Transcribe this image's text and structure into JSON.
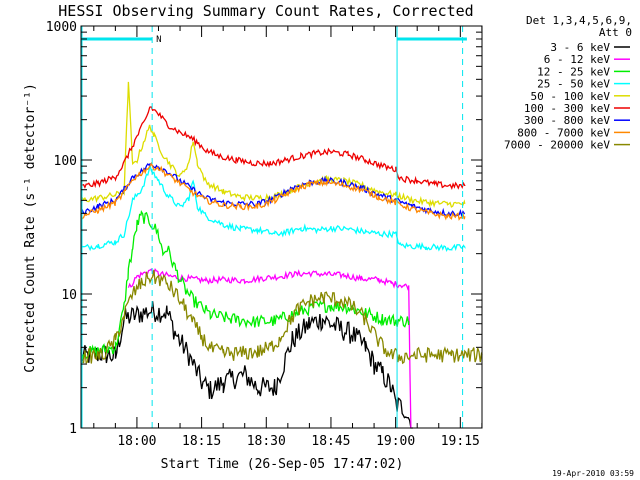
{
  "chart_data": {
    "type": "line",
    "title": "HESSI Observing Summary Count Rates, Corrected",
    "xlabel": "Start Time (26-Sep-05 17:47:02)",
    "ylabel": "Corrected Count Rate (s⁻¹ detector⁻¹)",
    "x_units": "minutes since 17:47:02",
    "xlim": [
      0,
      93
    ],
    "ylim": [
      1,
      1000
    ],
    "yscale": "log",
    "x_ticks": [
      {
        "value": 12.97,
        "label": "18:00"
      },
      {
        "value": 27.97,
        "label": "18:15"
      },
      {
        "value": 42.97,
        "label": "18:30"
      },
      {
        "value": 57.97,
        "label": "18:45"
      },
      {
        "value": 72.97,
        "label": "19:00"
      },
      {
        "value": 87.97,
        "label": "19:15"
      }
    ],
    "y_ticks": [
      {
        "value": 1,
        "label": "1"
      },
      {
        "value": 10,
        "label": "10"
      },
      {
        "value": 100,
        "label": "100"
      },
      {
        "value": 1000,
        "label": "1000"
      }
    ],
    "legend": {
      "header": [
        "Det 1,3,4,5,6,9,",
        "Att 0"
      ],
      "placement": "right"
    },
    "night_markers": [
      {
        "x": 16.5,
        "label": "N"
      },
      {
        "x": 88.5,
        "label": ""
      }
    ],
    "saa_bars": [
      {
        "x_start": 0,
        "x_end": 16.5,
        "y": 800
      },
      {
        "x_start": 73.3,
        "x_end": 89.5,
        "y": 800
      }
    ],
    "data_gaps": [
      {
        "x": 0
      },
      {
        "x": 73.3
      }
    ],
    "series": [
      {
        "name": "3 - 6 keV",
        "color": "#000000",
        "points": [
          [
            0,
            3.4
          ],
          [
            5,
            3.6
          ],
          [
            8,
            3.4
          ],
          [
            10,
            6.5
          ],
          [
            13,
            7.0
          ],
          [
            16,
            7.5
          ],
          [
            20,
            7.3
          ],
          [
            22,
            5.0
          ],
          [
            25,
            3.5
          ],
          [
            28,
            2.2
          ],
          [
            30,
            1.9
          ],
          [
            33,
            2.2
          ],
          [
            38,
            2.5
          ],
          [
            41,
            2.0
          ],
          [
            45,
            2.0
          ],
          [
            49,
            4.5
          ],
          [
            53,
            6.0
          ],
          [
            56,
            6.5
          ],
          [
            60,
            5.5
          ],
          [
            63,
            5.0
          ],
          [
            66,
            4.0
          ],
          [
            68,
            3.0
          ],
          [
            70,
            2.5
          ],
          [
            72,
            2.0
          ],
          [
            73,
            1.5
          ],
          [
            75,
            1.4
          ],
          [
            77,
            1.0
          ]
        ]
      },
      {
        "name": "6 - 12 keV",
        "color": "#ff00ff",
        "points": [
          [
            11,
            11.0
          ],
          [
            13,
            13.5
          ],
          [
            16,
            15.0
          ],
          [
            18,
            14.2
          ],
          [
            21,
            13.5
          ],
          [
            25,
            13.0
          ],
          [
            29,
            12.6
          ],
          [
            33,
            12.8
          ],
          [
            38,
            12.6
          ],
          [
            42,
            13.1
          ],
          [
            46,
            13.5
          ],
          [
            49,
            14.0
          ],
          [
            53,
            14.3
          ],
          [
            57,
            14.0
          ],
          [
            61,
            13.8
          ],
          [
            65,
            13.0
          ],
          [
            69,
            12.8
          ],
          [
            72,
            12.0
          ],
          [
            75,
            11.6
          ],
          [
            76,
            11.2
          ],
          [
            76.5,
            1.0
          ]
        ]
      },
      {
        "name": "12 - 25 keV",
        "color": "#00ee00",
        "points": [
          [
            0,
            3.6
          ],
          [
            5,
            3.8
          ],
          [
            8,
            4.0
          ],
          [
            10,
            8.0
          ],
          [
            11,
            15.0
          ],
          [
            12,
            22.0
          ],
          [
            13,
            33.0
          ],
          [
            14,
            38.0
          ],
          [
            16,
            35.0
          ],
          [
            18,
            28.0
          ],
          [
            19,
            20.0
          ],
          [
            20,
            22.0
          ],
          [
            22,
            15.0
          ],
          [
            24,
            11.0
          ],
          [
            26,
            9.0
          ],
          [
            30,
            7.0
          ],
          [
            35,
            6.5
          ],
          [
            40,
            6.2
          ],
          [
            45,
            6.3
          ],
          [
            50,
            7.2
          ],
          [
            54,
            8.0
          ],
          [
            58,
            8.2
          ],
          [
            62,
            8.0
          ],
          [
            66,
            7.2
          ],
          [
            70,
            6.5
          ],
          [
            73,
            6.3
          ],
          [
            76,
            6.3
          ]
        ]
      },
      {
        "name": "25 - 50 keV",
        "color": "#00ffff",
        "points": [
          [
            0,
            22.0
          ],
          [
            4,
            23.0
          ],
          [
            8,
            24.5
          ],
          [
            10,
            28.0
          ],
          [
            12,
            50.0
          ],
          [
            14,
            60.0
          ],
          [
            16,
            87.0
          ],
          [
            18,
            70.0
          ],
          [
            20,
            55.0
          ],
          [
            23,
            44.0
          ],
          [
            25,
            52.0
          ],
          [
            26,
            70.0
          ],
          [
            27,
            45.0
          ],
          [
            29,
            38.0
          ],
          [
            33,
            33.0
          ],
          [
            37,
            30.5
          ],
          [
            41,
            30.0
          ],
          [
            45,
            28.0
          ],
          [
            48,
            29.0
          ],
          [
            51,
            31.0
          ],
          [
            55,
            30.0
          ],
          [
            58,
            31.0
          ],
          [
            62,
            30.5
          ],
          [
            66,
            29.0
          ],
          [
            70,
            28.0
          ],
          [
            73,
            28.0
          ],
          [
            74,
            23.0
          ],
          [
            80,
            22.5
          ],
          [
            86,
            22.0
          ],
          [
            89,
            22.5
          ]
        ]
      },
      {
        "name": "50 - 100 keV",
        "color": "#dddd00",
        "points": [
          [
            0,
            50.0
          ],
          [
            4,
            52.0
          ],
          [
            8,
            55.0
          ],
          [
            10,
            58.0
          ],
          [
            11,
            380.0
          ],
          [
            12,
            90.0
          ],
          [
            13,
            100.0
          ],
          [
            15,
            150.0
          ],
          [
            16,
            180.0
          ],
          [
            17,
            150.0
          ],
          [
            19,
            110.0
          ],
          [
            21,
            90.0
          ],
          [
            23,
            75.0
          ],
          [
            25,
            95.0
          ],
          [
            26,
            140.0
          ],
          [
            27,
            95.0
          ],
          [
            29,
            68.0
          ],
          [
            33,
            58.0
          ],
          [
            37,
            53.0
          ],
          [
            41,
            52.0
          ],
          [
            45,
            54.0
          ],
          [
            49,
            60.0
          ],
          [
            53,
            68.0
          ],
          [
            57,
            72.0
          ],
          [
            61,
            70.0
          ],
          [
            65,
            65.0
          ],
          [
            69,
            58.0
          ],
          [
            73,
            55.0
          ],
          [
            77,
            50.0
          ],
          [
            81,
            48.0
          ],
          [
            85,
            47.0
          ],
          [
            89,
            47.0
          ]
        ]
      },
      {
        "name": "100 - 300 keV",
        "color": "#ee0000",
        "points": [
          [
            0,
            63.0
          ],
          [
            4,
            67.0
          ],
          [
            8,
            75.0
          ],
          [
            10,
            95.0
          ],
          [
            11,
            110.0
          ],
          [
            13,
            150.0
          ],
          [
            15,
            200.0
          ],
          [
            16,
            250.0
          ],
          [
            18,
            220.0
          ],
          [
            20,
            185.0
          ],
          [
            23,
            160.0
          ],
          [
            25,
            150.0
          ],
          [
            27,
            135.0
          ],
          [
            29,
            118.0
          ],
          [
            32,
            107.0
          ],
          [
            36,
            100.0
          ],
          [
            40,
            95.0
          ],
          [
            44,
            94.0
          ],
          [
            47,
            99.0
          ],
          [
            51,
            107.0
          ],
          [
            55,
            113.0
          ],
          [
            58,
            115.0
          ],
          [
            62,
            110.0
          ],
          [
            66,
            100.0
          ],
          [
            70,
            90.0
          ],
          [
            73,
            85.0
          ],
          [
            74,
            73.0
          ],
          [
            78,
            70.0
          ],
          [
            82,
            66.0
          ],
          [
            86,
            64.0
          ],
          [
            89,
            64.0
          ]
        ]
      },
      {
        "name": "300 - 800 keV",
        "color": "#0000ff",
        "points": [
          [
            0,
            40.0
          ],
          [
            4,
            45.0
          ],
          [
            8,
            50.0
          ],
          [
            10,
            60.0
          ],
          [
            12,
            75.0
          ],
          [
            14,
            82.0
          ],
          [
            16,
            93.0
          ],
          [
            18,
            90.0
          ],
          [
            20,
            82.0
          ],
          [
            23,
            70.0
          ],
          [
            26,
            60.0
          ],
          [
            29,
            52.0
          ],
          [
            33,
            48.0
          ],
          [
            37,
            47.0
          ],
          [
            41,
            47.0
          ],
          [
            45,
            52.0
          ],
          [
            49,
            62.0
          ],
          [
            53,
            68.0
          ],
          [
            57,
            70.0
          ],
          [
            61,
            68.0
          ],
          [
            65,
            62.0
          ],
          [
            69,
            55.0
          ],
          [
            73,
            50.0
          ],
          [
            77,
            45.0
          ],
          [
            81,
            42.0
          ],
          [
            85,
            40.0
          ],
          [
            89,
            40.0
          ]
        ]
      },
      {
        "name": "800 - 7000 keV",
        "color": "#ff8800",
        "points": [
          [
            0,
            38.0
          ],
          [
            4,
            42.0
          ],
          [
            8,
            48.0
          ],
          [
            10,
            57.0
          ],
          [
            12,
            72.0
          ],
          [
            14,
            80.0
          ],
          [
            16,
            90.0
          ],
          [
            18,
            87.0
          ],
          [
            20,
            78.0
          ],
          [
            23,
            67.0
          ],
          [
            26,
            57.0
          ],
          [
            29,
            50.0
          ],
          [
            33,
            46.0
          ],
          [
            37,
            45.0
          ],
          [
            41,
            45.0
          ],
          [
            45,
            50.0
          ],
          [
            49,
            59.0
          ],
          [
            53,
            66.0
          ],
          [
            57,
            68.0
          ],
          [
            61,
            65.0
          ],
          [
            65,
            60.0
          ],
          [
            69,
            53.0
          ],
          [
            73,
            48.0
          ],
          [
            77,
            43.0
          ],
          [
            81,
            40.0
          ],
          [
            85,
            38.0
          ],
          [
            89,
            38.0
          ]
        ]
      },
      {
        "name": "7000 - 20000 keV",
        "color": "#888800",
        "points": [
          [
            0,
            3.4
          ],
          [
            5,
            3.5
          ],
          [
            8,
            4.5
          ],
          [
            10,
            7.0
          ],
          [
            12,
            10.0
          ],
          [
            14,
            12.0
          ],
          [
            16,
            13.5
          ],
          [
            18,
            13.0
          ],
          [
            20,
            12.0
          ],
          [
            22,
            10.0
          ],
          [
            24,
            8.0
          ],
          [
            26,
            6.0
          ],
          [
            28,
            4.8
          ],
          [
            30,
            3.9
          ],
          [
            33,
            3.6
          ],
          [
            37,
            3.6
          ],
          [
            41,
            3.7
          ],
          [
            44,
            4.0
          ],
          [
            46,
            4.6
          ],
          [
            48,
            6.0
          ],
          [
            50,
            7.5
          ],
          [
            53,
            8.8
          ],
          [
            56,
            9.5
          ],
          [
            60,
            9.0
          ],
          [
            63,
            8.0
          ],
          [
            66,
            6.5
          ],
          [
            68,
            5.0
          ],
          [
            70,
            4.0
          ],
          [
            72,
            3.5
          ],
          [
            74,
            3.4
          ],
          [
            78,
            3.5
          ],
          [
            82,
            3.5
          ],
          [
            86,
            3.5
          ],
          [
            89,
            3.5
          ],
          [
            93,
            3.5
          ]
        ]
      }
    ]
  },
  "timestamp": "19-Apr-2010 03:59"
}
